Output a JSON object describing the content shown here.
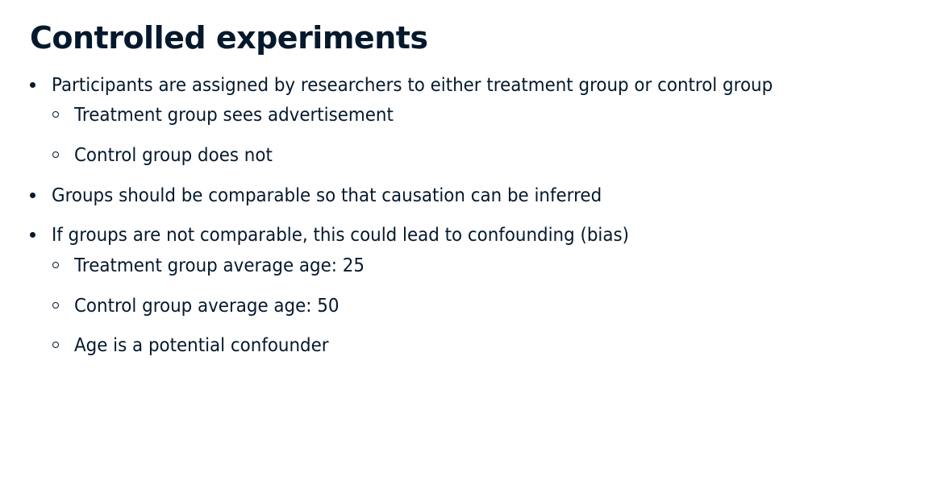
{
  "slide": {
    "title": "Controlled experiments",
    "bullets": [
      {
        "text": "Participants are assigned by researchers to either treatment group or control group",
        "sub": [
          "Treatment group sees advertisement",
          "Control group does not"
        ]
      },
      {
        "text": "Groups should be comparable so that causation can be inferred",
        "sub": []
      },
      {
        "text": "If groups are not comparable, this could lead to confounding (bias)",
        "sub": [
          "Treatment group average age: 25",
          "Control group average age: 50",
          "Age is a potential confounder"
        ]
      }
    ]
  }
}
